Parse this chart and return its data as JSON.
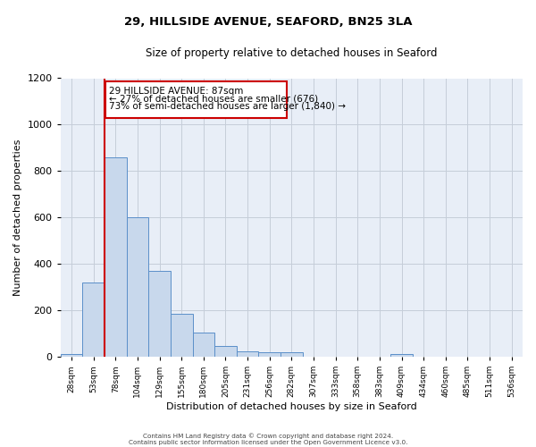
{
  "title": "29, HILLSIDE AVENUE, SEAFORD, BN25 3LA",
  "subtitle": "Size of property relative to detached houses in Seaford",
  "xlabel": "Distribution of detached houses by size in Seaford",
  "ylabel": "Number of detached properties",
  "bin_labels": [
    "28sqm",
    "53sqm",
    "78sqm",
    "104sqm",
    "129sqm",
    "155sqm",
    "180sqm",
    "205sqm",
    "231sqm",
    "256sqm",
    "282sqm",
    "307sqm",
    "333sqm",
    "358sqm",
    "383sqm",
    "409sqm",
    "434sqm",
    "460sqm",
    "485sqm",
    "511sqm",
    "536sqm"
  ],
  "bar_heights": [
    10,
    320,
    860,
    600,
    370,
    185,
    105,
    47,
    25,
    20,
    20,
    0,
    0,
    0,
    0,
    10,
    0,
    0,
    0,
    0,
    0
  ],
  "bar_color": "#c8d8ec",
  "bar_edge_color": "#5b8fc9",
  "background_color": "#e8eef7",
  "grid_color": "#c5cdd9",
  "vline_color": "#cc0000",
  "annotation_line1": "29 HILLSIDE AVENUE: 87sqm",
  "annotation_line2": "← 27% of detached houses are smaller (676)",
  "annotation_line3": "73% of semi-detached houses are larger (1,840) →",
  "annotation_box_edge_color": "#cc0000",
  "ylim": [
    0,
    1200
  ],
  "yticks": [
    0,
    200,
    400,
    600,
    800,
    1000,
    1200
  ],
  "footnote1": "Contains HM Land Registry data © Crown copyright and database right 2024.",
  "footnote2": "Contains public sector information licensed under the Open Government Licence v3.0."
}
